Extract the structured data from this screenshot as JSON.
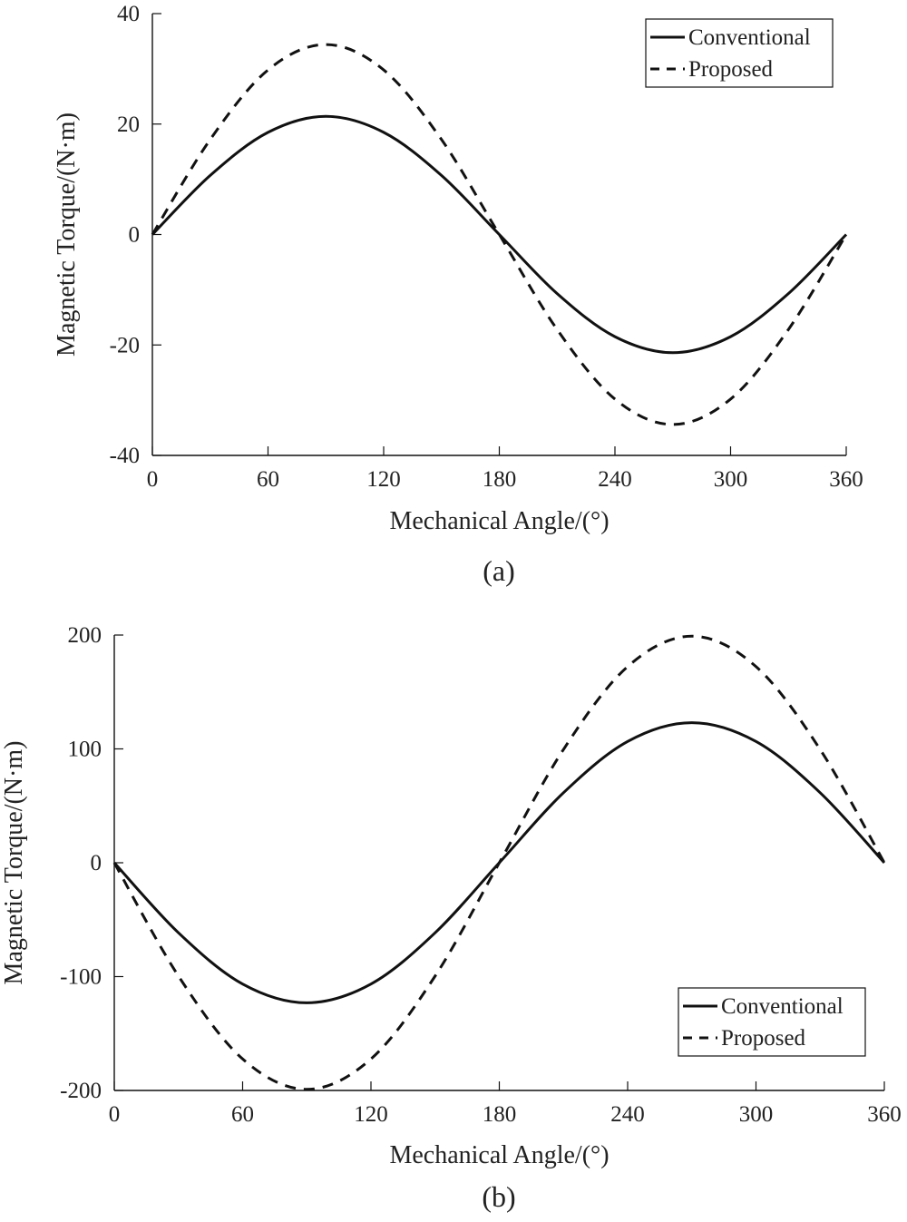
{
  "chart_data": [
    {
      "type": "line",
      "caption": "(a)",
      "xlabel": "Mechanical Angle/(°)",
      "ylabel": "Magnetic Torque/(N·m)",
      "xlim": [
        0,
        360
      ],
      "ylim": [
        -40,
        40
      ],
      "xticks": [
        0,
        60,
        120,
        180,
        240,
        300,
        360
      ],
      "yticks": [
        40,
        20,
        0,
        -20,
        -40
      ],
      "legend": {
        "position": "top-right",
        "entries": [
          "Conventional",
          "Proposed"
        ]
      },
      "series": [
        {
          "name": "Conventional",
          "style": "solid",
          "x": [
            0,
            30,
            60,
            90,
            120,
            150,
            180,
            210,
            240,
            270,
            300,
            330,
            360
          ],
          "y": [
            0,
            10.7,
            18.5,
            21.4,
            18.5,
            10.7,
            0,
            -10.7,
            -18.5,
            -21.4,
            -18.5,
            -10.7,
            0
          ]
        },
        {
          "name": "Proposed",
          "style": "dashed",
          "x": [
            0,
            30,
            60,
            90,
            120,
            150,
            180,
            210,
            240,
            270,
            300,
            330,
            360
          ],
          "y": [
            0,
            17.2,
            29.8,
            34.4,
            29.8,
            17.2,
            0,
            -17.2,
            -29.8,
            -34.4,
            -29.8,
            -17.2,
            0
          ]
        }
      ]
    },
    {
      "type": "line",
      "caption": "(b)",
      "xlabel": "Mechanical Angle/(°)",
      "ylabel": "Magnetic Torque/(N·m)",
      "xlim": [
        0,
        360
      ],
      "ylim": [
        -200,
        200
      ],
      "xticks": [
        0,
        60,
        120,
        180,
        240,
        300,
        360
      ],
      "yticks": [
        200,
        100,
        0,
        -100,
        -200
      ],
      "legend": {
        "position": "bottom-right",
        "entries": [
          "Conventional",
          "Proposed"
        ]
      },
      "series": [
        {
          "name": "Conventional",
          "style": "solid",
          "x": [
            0,
            30,
            60,
            90,
            120,
            150,
            180,
            210,
            240,
            270,
            300,
            330,
            360
          ],
          "y": [
            0,
            -61.5,
            -106.5,
            -123,
            -106.5,
            -61.5,
            0,
            61.5,
            106.5,
            123,
            106.5,
            61.5,
            0
          ]
        },
        {
          "name": "Proposed",
          "style": "dashed",
          "x": [
            0,
            30,
            60,
            90,
            120,
            150,
            180,
            210,
            240,
            270,
            300,
            330,
            360
          ],
          "y": [
            0,
            -99.5,
            -172.3,
            -199,
            -172.3,
            -99.5,
            0,
            99.5,
            172.3,
            199,
            172.3,
            99.5,
            0
          ]
        }
      ]
    }
  ]
}
